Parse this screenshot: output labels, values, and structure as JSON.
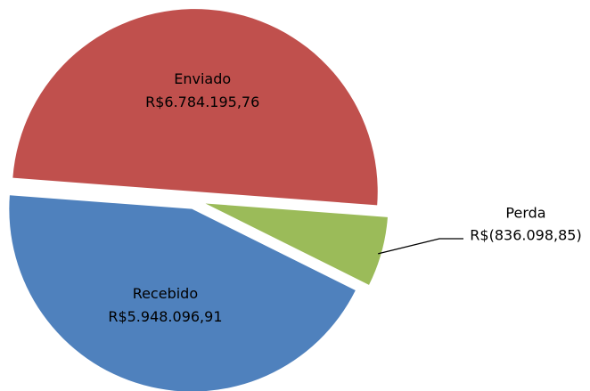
{
  "chart_data": {
    "type": "pie",
    "categories": [
      "Enviado",
      "Perda",
      "Recebido"
    ],
    "values": [
      6784195.76,
      -836098.85,
      5948096.91
    ],
    "value_labels": [
      "R$6.784.195,76",
      "R$(836.098,85)",
      "R$5.948.096,91"
    ],
    "colors": [
      "#c0504d",
      "#9bbb59",
      "#4f81bd"
    ]
  }
}
